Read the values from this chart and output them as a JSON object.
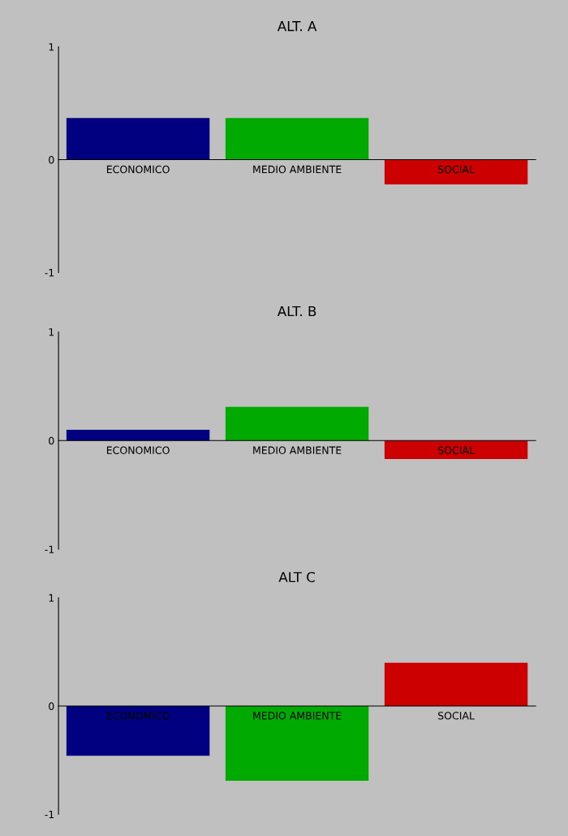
{
  "chart_data": [
    {
      "type": "bar",
      "title": "ALT. A",
      "categories": [
        "ECONOMICO",
        "MEDIO AMBIENTE",
        "SOCIAL"
      ],
      "values": [
        0.37,
        0.37,
        -0.22
      ],
      "colors": [
        "#000080",
        "#00aa00",
        "#cc0000"
      ],
      "ylim": [
        -1,
        1
      ],
      "yticks": [
        -1,
        0,
        1
      ]
    },
    {
      "type": "bar",
      "title": "ALT. B",
      "categories": [
        "ECONOMICO",
        "MEDIO AMBIENTE",
        "SOCIAL"
      ],
      "values": [
        0.1,
        0.31,
        -0.17
      ],
      "colors": [
        "#000080",
        "#00aa00",
        "#cc0000"
      ],
      "ylim": [
        -1,
        1
      ],
      "yticks": [
        -1,
        0,
        1
      ]
    },
    {
      "type": "bar",
      "title": "ALT C",
      "categories": [
        "ECONOMICO",
        "MEDIO AMBIENTE",
        "SOCIAL"
      ],
      "values": [
        -0.46,
        -0.69,
        0.4
      ],
      "colors": [
        "#000080",
        "#00aa00",
        "#cc0000"
      ],
      "ylim": [
        -1,
        1
      ],
      "yticks": [
        -1,
        0,
        1
      ]
    }
  ]
}
